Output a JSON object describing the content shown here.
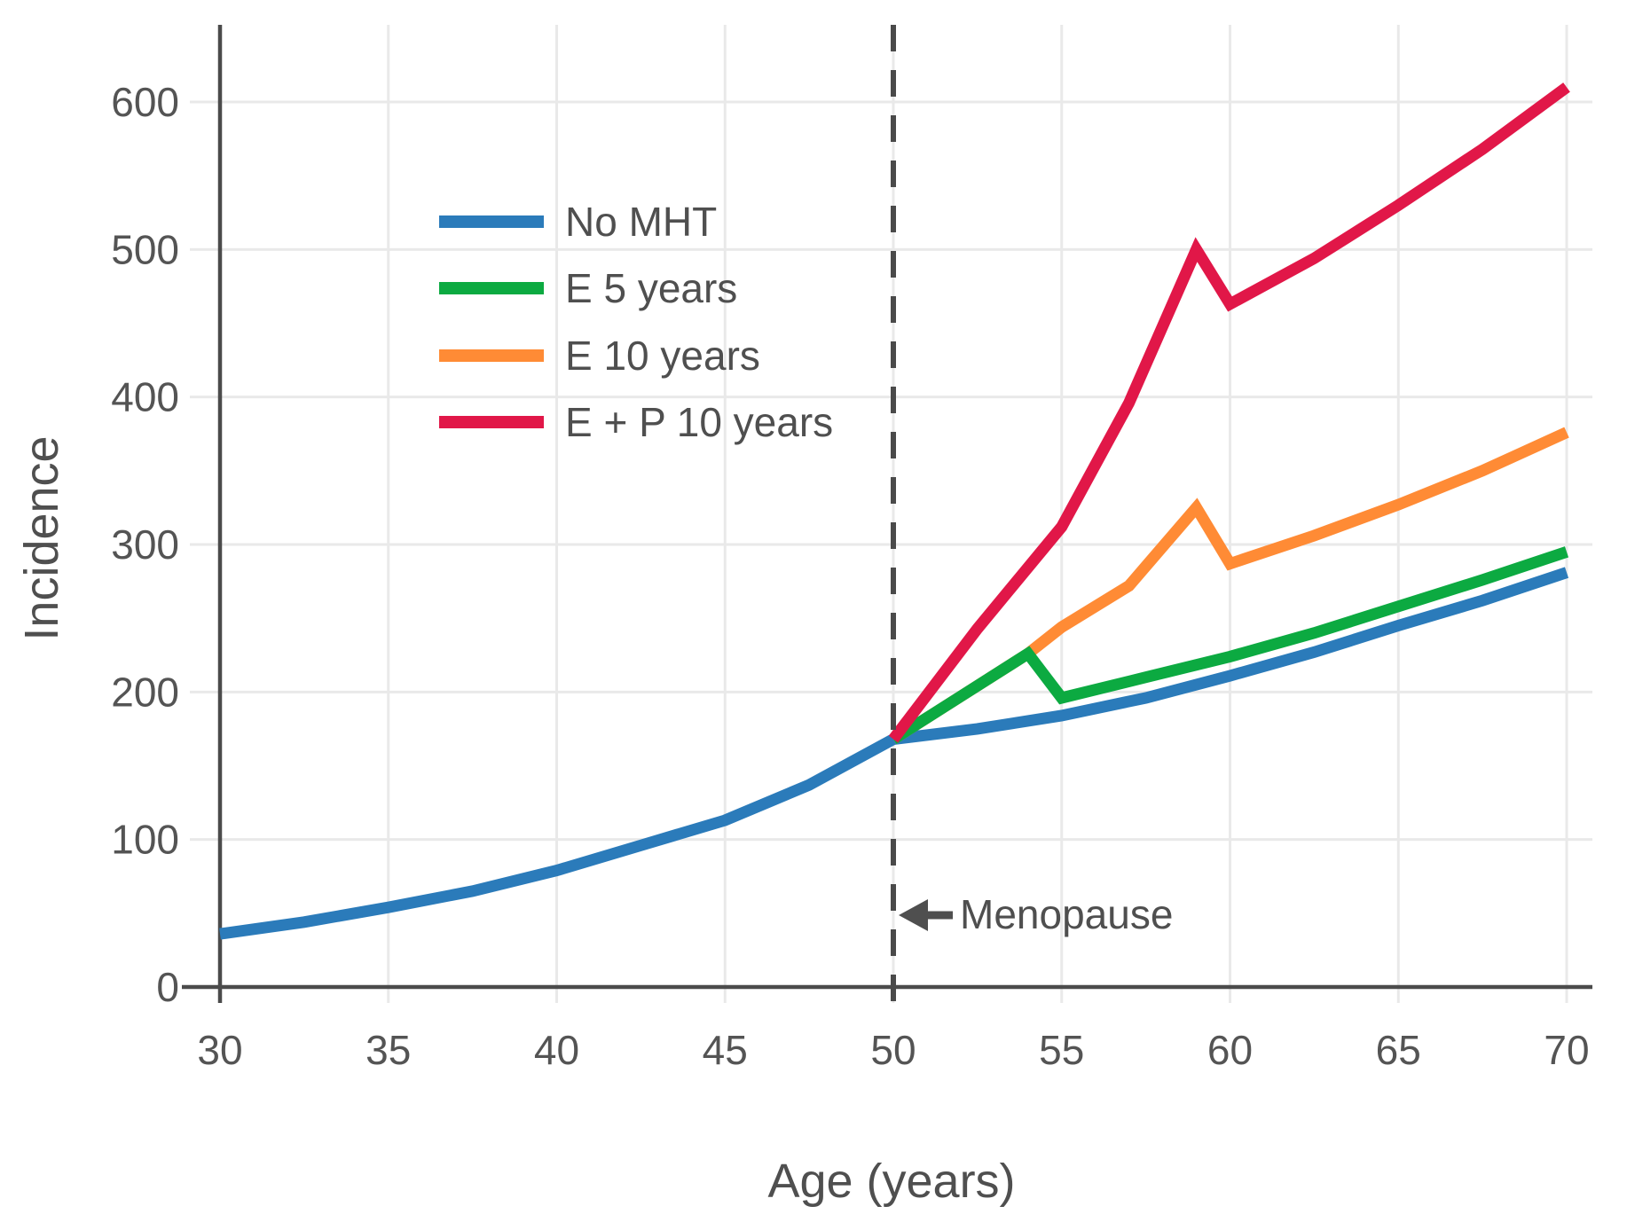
{
  "chart_data": {
    "type": "line",
    "title": "",
    "xlabel": "Age (years)",
    "ylabel": "Incidence",
    "x_ticks": [
      30,
      35,
      40,
      45,
      50,
      55,
      60,
      65,
      70
    ],
    "y_ticks": [
      0,
      100,
      200,
      300,
      400,
      500,
      600
    ],
    "xlim": [
      30,
      70.8
    ],
    "ylim": [
      0,
      652
    ],
    "grid": true,
    "legend_position": "upper-left-inside",
    "menopause_line_x": 50,
    "annotation": {
      "text": "Menopause",
      "arrow": "left-arrow",
      "points_to_age": 50,
      "y_value": 48
    },
    "draw_order": [
      0,
      2,
      1,
      3
    ],
    "series": [
      {
        "name": "No MHT",
        "color": "#2b7bba",
        "points": [
          [
            30,
            36
          ],
          [
            32.5,
            44
          ],
          [
            35,
            54
          ],
          [
            37.5,
            65
          ],
          [
            40,
            79
          ],
          [
            42.5,
            96
          ],
          [
            45,
            113
          ],
          [
            47.5,
            137
          ],
          [
            50,
            168
          ],
          [
            52.5,
            175
          ],
          [
            55,
            184
          ],
          [
            57.5,
            196
          ],
          [
            60,
            211
          ],
          [
            62.5,
            227
          ],
          [
            65,
            245
          ],
          [
            67.5,
            262
          ],
          [
            70,
            281
          ]
        ]
      },
      {
        "name": "E 5 years",
        "color": "#0caa41",
        "points": [
          [
            50,
            168
          ],
          [
            52,
            197
          ],
          [
            54,
            226
          ],
          [
            55,
            196
          ],
          [
            57.5,
            210
          ],
          [
            60,
            224
          ],
          [
            62.5,
            240
          ],
          [
            65,
            258
          ],
          [
            67.5,
            276
          ],
          [
            70,
            295
          ]
        ]
      },
      {
        "name": "E 10 years",
        "color": "#ff8b35",
        "points": [
          [
            50,
            168
          ],
          [
            52,
            197
          ],
          [
            54,
            226
          ],
          [
            55,
            244
          ],
          [
            57,
            272
          ],
          [
            59,
            325
          ],
          [
            60,
            287
          ],
          [
            62.5,
            306
          ],
          [
            65,
            327
          ],
          [
            67.5,
            350
          ],
          [
            70,
            376
          ]
        ]
      },
      {
        "name": "E + P 10 years",
        "color": "#e11748",
        "points": [
          [
            50,
            168
          ],
          [
            52.5,
            243
          ],
          [
            55,
            312
          ],
          [
            57,
            396
          ],
          [
            59,
            500
          ],
          [
            60,
            463
          ],
          [
            62.5,
            494
          ],
          [
            65,
            530
          ],
          [
            67.5,
            568
          ],
          [
            70,
            610
          ]
        ]
      }
    ],
    "style_colors": {
      "axis": "#4b4b4b",
      "gridline": "#e9e9e9",
      "dashed_line": "#4a4a4a",
      "text": "#545454"
    }
  }
}
